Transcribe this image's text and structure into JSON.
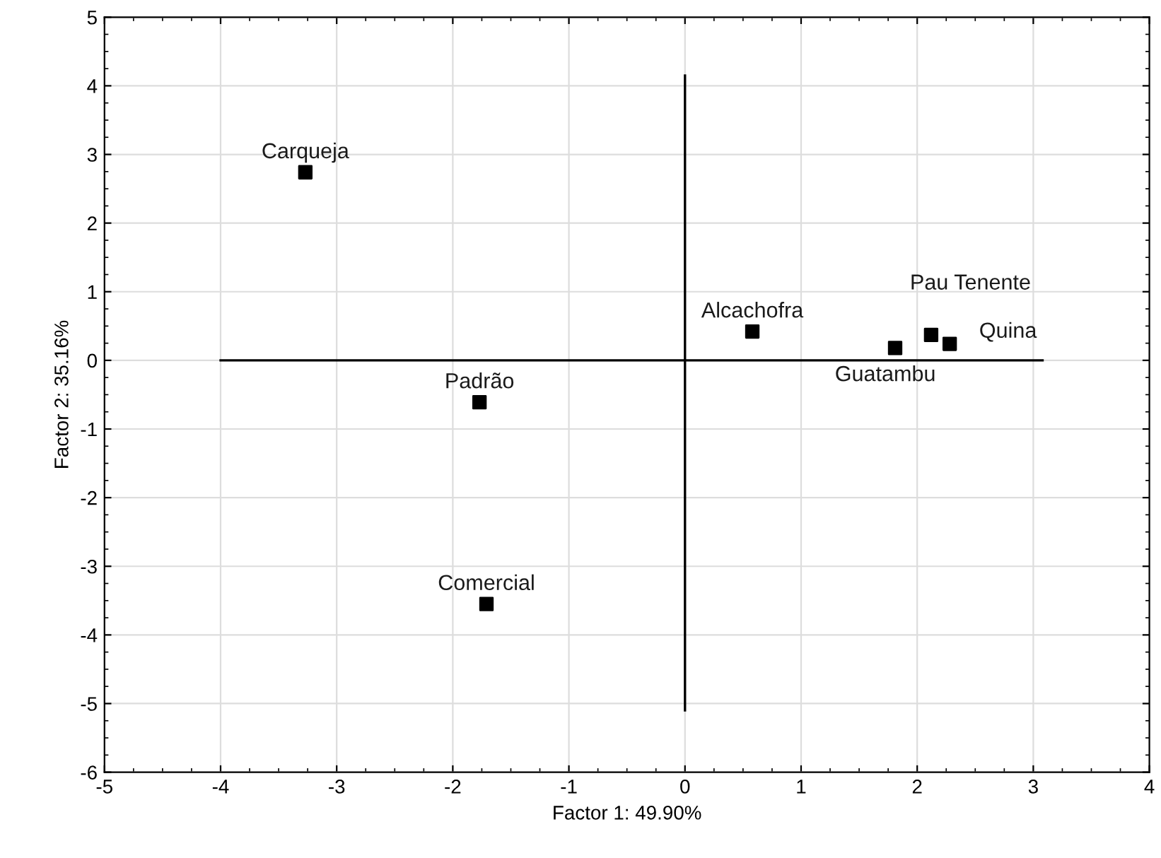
{
  "chart_data": {
    "type": "scatter",
    "xlabel": "Factor 1: 49.90%",
    "ylabel": "Factor 2: 35.16%",
    "xlim": [
      -5,
      4
    ],
    "ylim": [
      -6,
      5
    ],
    "xticks": [
      -5,
      -4,
      -3,
      -2,
      -1,
      0,
      1,
      2,
      3,
      4
    ],
    "yticks": [
      -6,
      -5,
      -4,
      -3,
      -2,
      -1,
      0,
      1,
      2,
      3,
      4,
      5
    ],
    "grid": true,
    "marker": "square",
    "legend": false,
    "series": [
      {
        "name": "Carqueja",
        "color": "#000000",
        "x": [
          -3.27
        ],
        "values": [
          2.74
        ]
      },
      {
        "name": "Padrão",
        "color": "#000000",
        "x": [
          -1.77
        ],
        "values": [
          -0.61
        ]
      },
      {
        "name": "Comercial",
        "color": "#000000",
        "x": [
          -1.71
        ],
        "values": [
          -3.55
        ]
      },
      {
        "name": "Alcachofra",
        "color": "#000000",
        "x": [
          0.58
        ],
        "values": [
          0.42
        ]
      },
      {
        "name": "Guatambu",
        "color": "#000000",
        "x": [
          1.81
        ],
        "values": [
          0.18
        ]
      },
      {
        "name": "Pau Tenente",
        "color": "#000000",
        "x": [
          2.12
        ],
        "values": [
          0.37
        ]
      },
      {
        "name": "Quina",
        "color": "#000000",
        "x": [
          2.28
        ],
        "values": [
          0.24
        ]
      },
      {
        "type": "line",
        "marker": "none",
        "color": "#000000",
        "x": [
          -4,
          3.08
        ],
        "values": [
          0,
          0
        ]
      },
      {
        "type": "line",
        "marker": "none",
        "color": "#000000",
        "x": [
          0,
          0
        ],
        "values": [
          -5.1,
          4.15
        ]
      }
    ]
  }
}
